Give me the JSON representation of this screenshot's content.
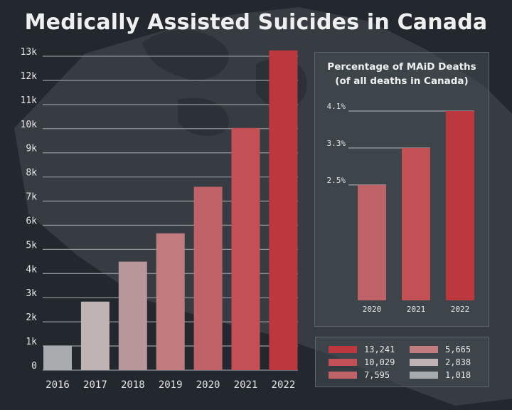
{
  "title": "Medically Assisted Suicides in Canada",
  "colors": {
    "background": "#22282d",
    "panel": "#3b4146",
    "gridline": "#8e9396",
    "bar_2016": "#a9acae",
    "bar_2017": "#bfb3b4",
    "bar_2018": "#b8979a",
    "bar_2019": "#c07c7f",
    "bar_2020": "#bf6368",
    "bar_2021": "#c25055",
    "bar_2022": "#bd383e"
  },
  "chart_data": [
    {
      "type": "bar",
      "title": "Medically Assisted Suicides in Canada",
      "xlabel": "",
      "ylabel": "",
      "categories": [
        "2016",
        "2017",
        "2018",
        "2019",
        "2020",
        "2021",
        "2022"
      ],
      "values": [
        1018,
        2838,
        4493,
        5665,
        7595,
        10029,
        13241
      ],
      "ylim": [
        0,
        13000
      ],
      "yticks": [
        0,
        1000,
        2000,
        3000,
        4000,
        5000,
        6000,
        7000,
        8000,
        9000,
        10000,
        11000,
        12000,
        13000
      ],
      "ytick_labels": [
        "0",
        "1k",
        "2k",
        "3k",
        "4k",
        "5k",
        "6k",
        "7k",
        "8k",
        "9k",
        "10k",
        "11k",
        "12k",
        "13k"
      ],
      "grid": true,
      "bar_colors": [
        "#a9acae",
        "#bfb3b4",
        "#b8979a",
        "#c07c7f",
        "#bf6368",
        "#c25055",
        "#bd383e"
      ]
    },
    {
      "type": "bar",
      "title": "Percentage of MAiD Deaths (of all deaths in Canada)",
      "title_lines": [
        "Percentage of MAiD Deaths",
        "(of all deaths in Canada)"
      ],
      "categories": [
        "2020",
        "2021",
        "2022"
      ],
      "values": [
        2.5,
        3.3,
        4.1
      ],
      "value_labels": [
        "2.5%",
        "3.3%",
        "4.1%"
      ],
      "ylim": [
        0,
        4.1
      ],
      "bar_colors": [
        "#bf6368",
        "#c25055",
        "#bd383e"
      ]
    }
  ],
  "legend": {
    "placement": "bottom-right",
    "entries": [
      {
        "label": "13,241",
        "color": "#bd383e"
      },
      {
        "label": "10,029",
        "color": "#c25055"
      },
      {
        "label": "7,595",
        "color": "#bf6368"
      },
      {
        "label": "5,665",
        "color": "#c07c7f"
      },
      {
        "label": "2,838",
        "color": "#bfb3b4"
      },
      {
        "label": "1,018",
        "color": "#a9acae"
      }
    ]
  }
}
